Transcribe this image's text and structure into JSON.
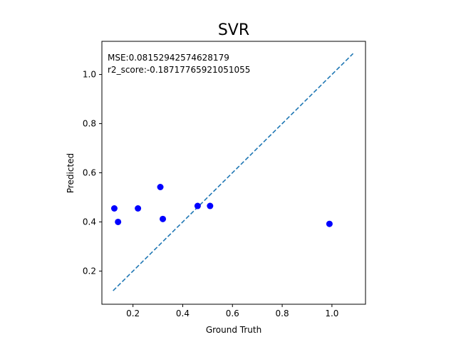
{
  "chart_data": {
    "type": "scatter",
    "title": "SVR",
    "xlabel": "Ground Truth",
    "ylabel": "Predicted",
    "xlim": [
      0.075,
      1.135
    ],
    "ylim": [
      0.065,
      1.135
    ],
    "xticks": [
      0.2,
      0.4,
      0.6,
      0.8,
      1.0
    ],
    "xtick_labels": [
      "0.2",
      "0.4",
      "0.6",
      "0.8",
      "1.0"
    ],
    "yticks": [
      0.2,
      0.4,
      0.6,
      0.8,
      1.0
    ],
    "ytick_labels": [
      "0.2",
      "0.4",
      "0.6",
      "0.8",
      "1.0"
    ],
    "grid": false,
    "series": [
      {
        "kind": "scatter",
        "color": "#0000ff",
        "x": [
          0.125,
          0.14,
          0.22,
          0.31,
          0.32,
          0.46,
          0.51,
          0.99
        ],
        "y": [
          0.455,
          0.4,
          0.455,
          0.542,
          0.412,
          0.465,
          0.465,
          0.392
        ]
      },
      {
        "kind": "line",
        "style": "dashed",
        "color": "#1f77b4",
        "x": [
          0.12,
          1.085
        ],
        "y": [
          0.12,
          1.085
        ]
      }
    ],
    "annotations": [
      "MSE:0.08152942574628179",
      "r2_score:-0.18717765921051055"
    ]
  }
}
